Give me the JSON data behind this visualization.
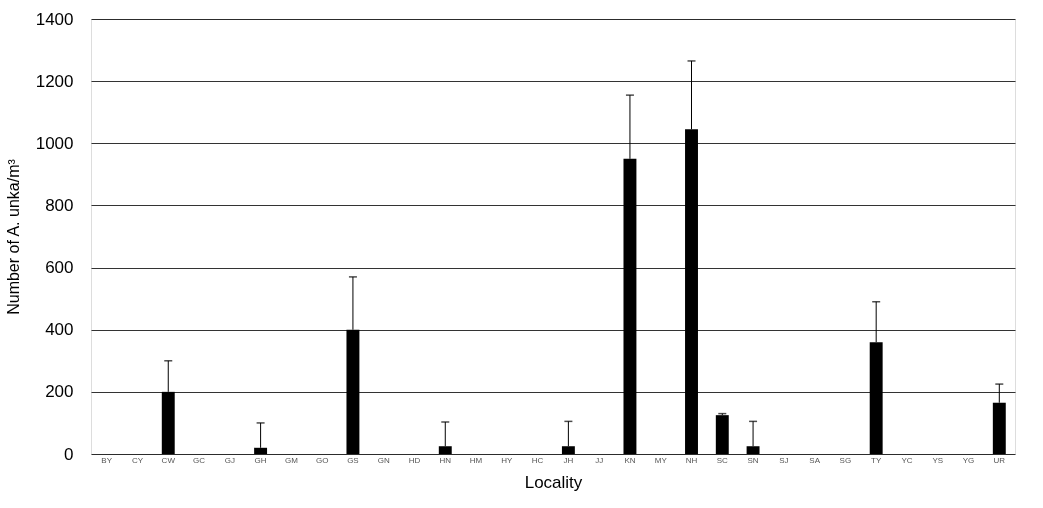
{
  "chart_data": {
    "type": "bar",
    "xlabel": "Locality",
    "ylabel": "Number of A. unka/m³",
    "categories": [
      "BY",
      "CY",
      "CW",
      "GC",
      "GJ",
      "GH",
      "GM",
      "GO",
      "GS",
      "GN",
      "HD",
      "HN",
      "HM",
      "HY",
      "HC",
      "JH",
      "JJ",
      "KN",
      "MY",
      "NH",
      "SC",
      "SN",
      "SJ",
      "SA",
      "SG",
      "TY",
      "YC",
      "YS",
      "YG",
      "UR"
    ],
    "values": [
      0,
      0,
      200,
      0,
      0,
      20,
      0,
      0,
      400,
      0,
      0,
      25,
      0,
      0,
      0,
      25,
      0,
      950,
      0,
      1045,
      125,
      25,
      0,
      0,
      0,
      360,
      0,
      0,
      0,
      165
    ],
    "errors": [
      null,
      null,
      [
        200,
        300
      ],
      null,
      null,
      [
        20,
        100
      ],
      null,
      null,
      [
        400,
        570
      ],
      null,
      null,
      [
        25,
        103
      ],
      null,
      null,
      null,
      [
        25,
        105
      ],
      null,
      [
        950,
        1155
      ],
      null,
      [
        1045,
        1265
      ],
      [
        125,
        130
      ],
      [
        25,
        105
      ],
      null,
      null,
      null,
      [
        360,
        490
      ],
      null,
      null,
      null,
      [
        165,
        225
      ]
    ],
    "color": "#000000",
    "ylim": [
      0,
      1400
    ],
    "yticks": [
      0,
      200,
      400,
      600,
      800,
      1000,
      1200,
      1400
    ],
    "grid": "y"
  }
}
